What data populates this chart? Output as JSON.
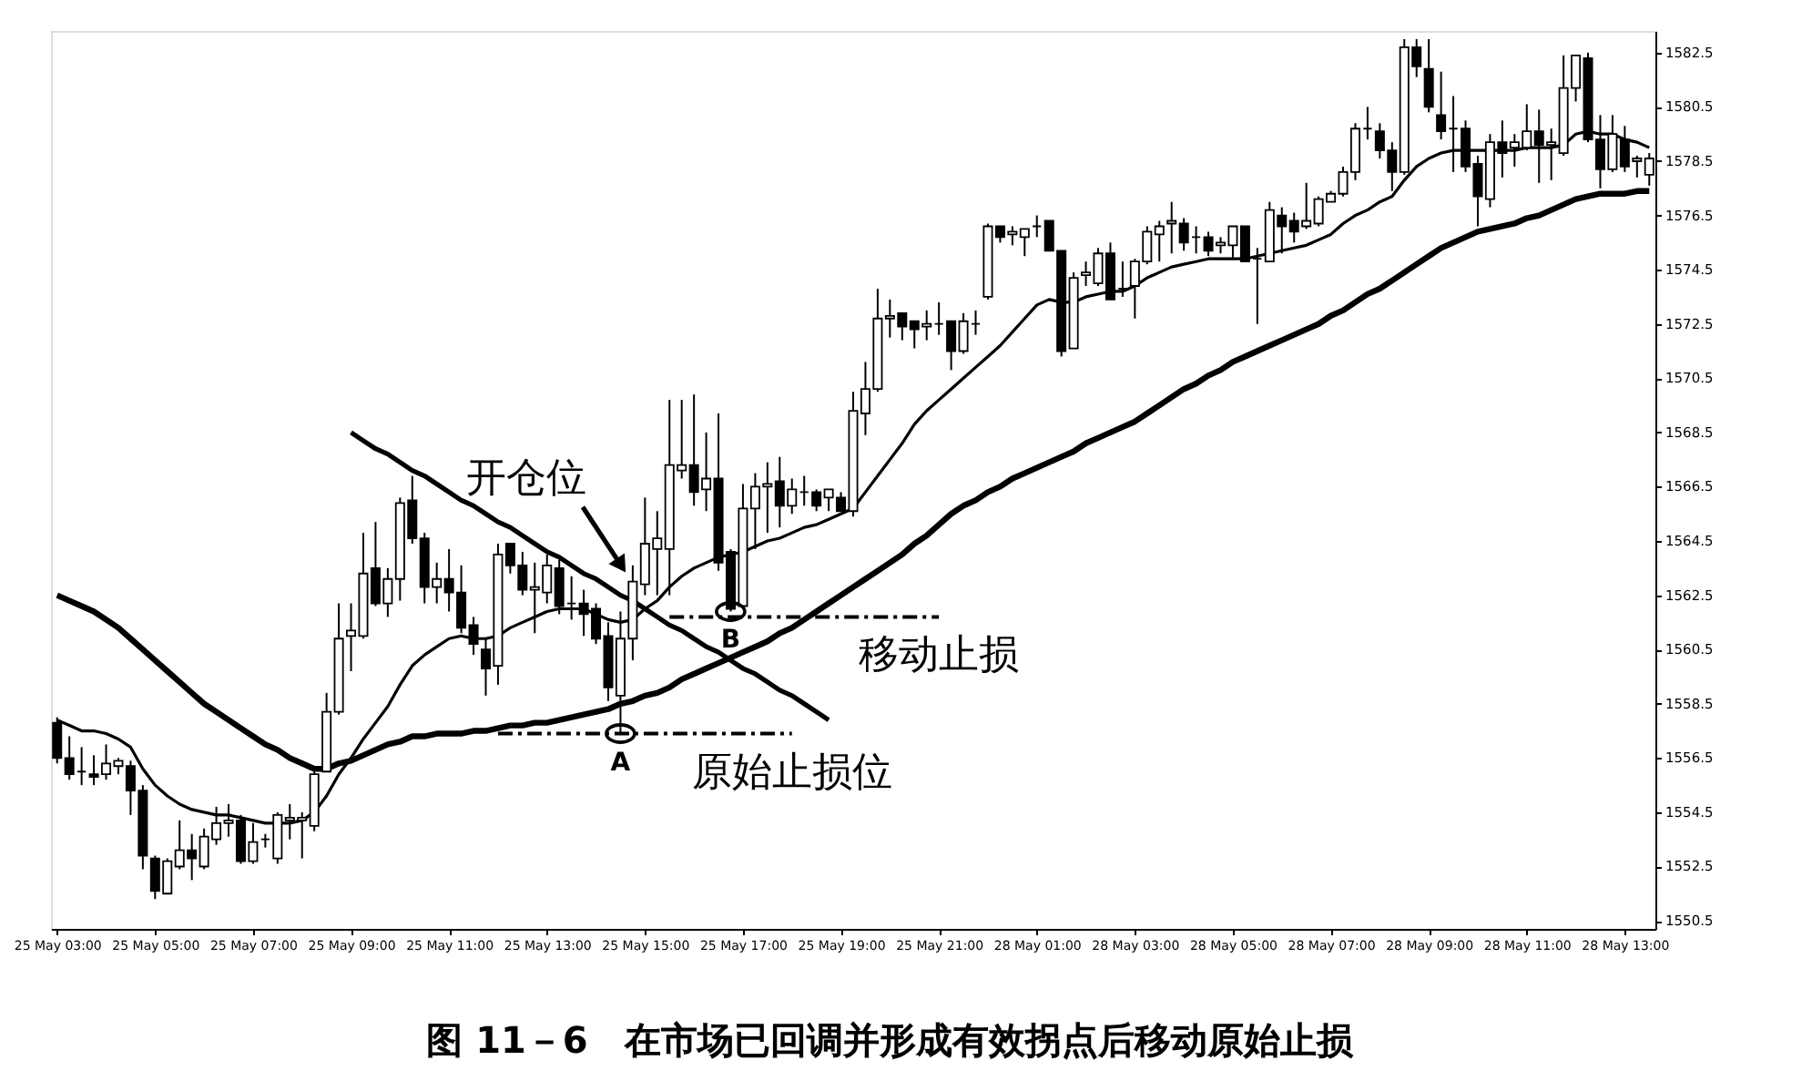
{
  "chart_data": {
    "type": "candlestick",
    "title": "图 11－6　在市场已回调并形成有效拐点后移动原始止损",
    "categories": [
      "25 May 03:00",
      null,
      null,
      null,
      null,
      null,
      null,
      null,
      "25 May 05:00",
      null,
      null,
      null,
      null,
      null,
      null,
      null,
      "25 May 07:00",
      null,
      null,
      null,
      null,
      null,
      null,
      null,
      "25 May 09:00",
      null,
      null,
      null,
      null,
      null,
      null,
      null,
      "25 May 11:00",
      null,
      null,
      null,
      null,
      null,
      null,
      null,
      "25 May 13:00",
      null,
      null,
      null,
      null,
      null,
      null,
      null,
      "25 May 15:00",
      null,
      null,
      null,
      null,
      null,
      null,
      null,
      "25 May 17:00",
      null,
      null,
      null,
      null,
      null,
      null,
      null,
      "25 May 19:00",
      null,
      null,
      null,
      null,
      null,
      null,
      null,
      "25 May 21:00",
      null,
      null,
      null,
      null,
      null,
      null,
      null,
      "28 May 01:00",
      null,
      null,
      null,
      null,
      null,
      null,
      null,
      "28 May 03:00",
      null,
      null,
      null,
      null,
      null,
      null,
      null,
      "28 May 05:00",
      null,
      null,
      null,
      null,
      null,
      null,
      null,
      "28 May 07:00",
      null,
      null,
      null,
      null,
      null,
      null,
      null,
      "28 May 09:00",
      null,
      null,
      null,
      null,
      null,
      null,
      null,
      "28 May 11:00",
      null,
      null,
      null,
      null,
      null,
      null,
      null,
      "28 May 13:00",
      null,
      null
    ],
    "ylim": [
      1550.2,
      1583.3
    ],
    "yticks": [
      1550.5,
      1552.5,
      1554.5,
      1556.5,
      1558.5,
      1560.5,
      1562.5,
      1564.5,
      1566.5,
      1568.5,
      1570.5,
      1572.5,
      1574.5,
      1576.5,
      1578.5,
      1580.5,
      1582.5
    ],
    "grid": false,
    "ohlc": [
      [
        1557.8,
        1558.0,
        1556.3,
        1556.5
      ],
      [
        1556.5,
        1557.3,
        1555.7,
        1555.9
      ],
      [
        1556.0,
        1556.9,
        1555.5,
        1556.0
      ],
      [
        1555.9,
        1556.6,
        1555.5,
        1555.8
      ],
      [
        1555.9,
        1557.0,
        1555.7,
        1556.3
      ],
      [
        1556.2,
        1556.5,
        1555.9,
        1556.4
      ],
      [
        1556.2,
        1556.4,
        1554.4,
        1555.3
      ],
      [
        1555.3,
        1555.5,
        1552.4,
        1552.9
      ],
      [
        1552.8,
        1552.9,
        1551.3,
        1551.6
      ],
      [
        1551.5,
        1552.8,
        1551.5,
        1552.7
      ],
      [
        1552.5,
        1554.2,
        1552.4,
        1553.1
      ],
      [
        1553.1,
        1553.7,
        1552.0,
        1552.8
      ],
      [
        1552.5,
        1553.9,
        1552.4,
        1553.6
      ],
      [
        1553.5,
        1554.7,
        1553.3,
        1554.1
      ],
      [
        1554.1,
        1554.8,
        1553.6,
        1554.2
      ],
      [
        1554.2,
        1554.4,
        1552.6,
        1552.7
      ],
      [
        1552.7,
        1554.1,
        1552.6,
        1553.4
      ],
      [
        1553.5,
        1553.7,
        1553.2,
        1553.5
      ],
      [
        1552.8,
        1554.5,
        1552.6,
        1554.4
      ],
      [
        1554.2,
        1554.8,
        1553.5,
        1554.3
      ],
      [
        1554.2,
        1554.5,
        1552.8,
        1554.3
      ],
      [
        1554.0,
        1556.1,
        1553.8,
        1555.9
      ],
      [
        1556.0,
        1558.9,
        1556.0,
        1558.2
      ],
      [
        1558.2,
        1562.2,
        1558.1,
        1560.9
      ],
      [
        1561.0,
        1562.2,
        1559.7,
        1561.2
      ],
      [
        1561.0,
        1564.8,
        1560.9,
        1563.3
      ],
      [
        1563.5,
        1565.2,
        1562.1,
        1562.2
      ],
      [
        1562.2,
        1563.5,
        1561.7,
        1563.1
      ],
      [
        1563.1,
        1566.1,
        1562.3,
        1565.9
      ],
      [
        1566.0,
        1566.9,
        1564.4,
        1564.6
      ],
      [
        1564.6,
        1564.8,
        1562.2,
        1562.8
      ],
      [
        1562.8,
        1563.7,
        1562.2,
        1563.1
      ],
      [
        1563.1,
        1564.2,
        1561.9,
        1562.6
      ],
      [
        1562.6,
        1563.6,
        1561.1,
        1561.3
      ],
      [
        1561.4,
        1561.7,
        1560.3,
        1560.7
      ],
      [
        1560.5,
        1560.9,
        1558.8,
        1559.8
      ],
      [
        1559.9,
        1564.4,
        1559.2,
        1564.0
      ],
      [
        1564.4,
        1564.4,
        1563.3,
        1563.6
      ],
      [
        1563.6,
        1564.1,
        1562.5,
        1562.7
      ],
      [
        1562.7,
        1563.7,
        1561.1,
        1562.8
      ],
      [
        1562.6,
        1564.0,
        1562.2,
        1563.6
      ],
      [
        1563.5,
        1563.8,
        1561.8,
        1562.1
      ],
      [
        1562.2,
        1563.2,
        1561.6,
        1562.2
      ],
      [
        1562.2,
        1562.7,
        1561.0,
        1561.8
      ],
      [
        1562.0,
        1562.2,
        1560.7,
        1560.9
      ],
      [
        1561.0,
        1561.5,
        1558.6,
        1559.1
      ],
      [
        1558.8,
        1561.9,
        1557.4,
        1560.9
      ],
      [
        1560.9,
        1563.6,
        1560.1,
        1563.0
      ],
      [
        1562.9,
        1566.1,
        1562.5,
        1564.4
      ],
      [
        1564.2,
        1565.6,
        1562.5,
        1564.6
      ],
      [
        1564.2,
        1569.7,
        1562.5,
        1567.3
      ],
      [
        1567.1,
        1569.7,
        1566.8,
        1567.3
      ],
      [
        1567.3,
        1569.9,
        1565.8,
        1566.3
      ],
      [
        1566.4,
        1568.5,
        1565.6,
        1566.8
      ],
      [
        1566.8,
        1569.2,
        1563.4,
        1563.7
      ],
      [
        1564.1,
        1564.2,
        1561.9,
        1562.0
      ],
      [
        1562.1,
        1566.6,
        1562.0,
        1565.7
      ],
      [
        1565.7,
        1567.0,
        1564.2,
        1566.5
      ],
      [
        1566.5,
        1567.4,
        1564.8,
        1566.6
      ],
      [
        1566.7,
        1567.6,
        1565.0,
        1565.8
      ],
      [
        1565.8,
        1566.8,
        1565.5,
        1566.4
      ],
      [
        1566.3,
        1566.9,
        1565.8,
        1566.3
      ],
      [
        1566.3,
        1566.4,
        1565.6,
        1565.8
      ],
      [
        1566.1,
        1566.4,
        1565.6,
        1566.4
      ],
      [
        1566.1,
        1566.3,
        1565.6,
        1565.6
      ],
      [
        1565.6,
        1570.0,
        1565.4,
        1569.3
      ],
      [
        1569.2,
        1571.1,
        1568.4,
        1570.1
      ],
      [
        1570.1,
        1573.8,
        1570.0,
        1572.7
      ],
      [
        1572.7,
        1573.4,
        1572.0,
        1572.8
      ],
      [
        1572.9,
        1572.9,
        1571.9,
        1572.4
      ],
      [
        1572.6,
        1572.6,
        1571.6,
        1572.3
      ],
      [
        1572.4,
        1573.0,
        1571.9,
        1572.5
      ],
      [
        1572.5,
        1573.3,
        1572.1,
        1572.5
      ],
      [
        1572.6,
        1572.6,
        1570.8,
        1571.5
      ],
      [
        1571.5,
        1572.9,
        1571.4,
        1572.6
      ],
      [
        1572.5,
        1573.0,
        1572.1,
        1572.5
      ],
      [
        1573.5,
        1576.2,
        1573.4,
        1576.1
      ],
      [
        1576.1,
        1576.1,
        1575.5,
        1575.7
      ],
      [
        1575.8,
        1576.1,
        1575.4,
        1575.9
      ],
      [
        1575.7,
        1576.0,
        1575.0,
        1576.0
      ],
      [
        1576.1,
        1576.5,
        1575.7,
        1576.1
      ],
      [
        1576.3,
        1576.3,
        1575.2,
        1575.2
      ],
      [
        1575.2,
        1575.2,
        1571.3,
        1571.5
      ],
      [
        1571.6,
        1574.4,
        1571.6,
        1574.2
      ],
      [
        1574.3,
        1574.8,
        1573.9,
        1574.4
      ],
      [
        1574.0,
        1575.3,
        1573.9,
        1575.1
      ],
      [
        1575.1,
        1575.5,
        1573.4,
        1573.4
      ],
      [
        1573.8,
        1574.8,
        1573.5,
        1573.8
      ],
      [
        1573.9,
        1574.9,
        1572.7,
        1574.8
      ],
      [
        1574.8,
        1576.1,
        1574.7,
        1575.9
      ],
      [
        1575.8,
        1576.3,
        1574.8,
        1576.1
      ],
      [
        1576.2,
        1577.0,
        1575.1,
        1576.3
      ],
      [
        1576.2,
        1576.4,
        1575.2,
        1575.5
      ],
      [
        1575.7,
        1576.1,
        1575.1,
        1575.7
      ],
      [
        1575.7,
        1575.9,
        1575.0,
        1575.2
      ],
      [
        1575.4,
        1575.7,
        1575.1,
        1575.5
      ],
      [
        1575.4,
        1576.1,
        1574.9,
        1576.1
      ],
      [
        1576.1,
        1576.1,
        1574.8,
        1574.8
      ],
      [
        1574.9,
        1575.3,
        1572.5,
        1574.9
      ],
      [
        1574.8,
        1577.0,
        1574.8,
        1576.7
      ],
      [
        1576.5,
        1576.8,
        1575.1,
        1576.1
      ],
      [
        1576.3,
        1576.6,
        1575.5,
        1575.9
      ],
      [
        1576.1,
        1577.7,
        1576.0,
        1576.3
      ],
      [
        1576.2,
        1577.2,
        1576.1,
        1577.1
      ],
      [
        1577.0,
        1577.4,
        1577.0,
        1577.3
      ],
      [
        1577.3,
        1578.3,
        1577.2,
        1578.1
      ],
      [
        1578.1,
        1579.9,
        1577.8,
        1579.7
      ],
      [
        1579.7,
        1580.5,
        1579.3,
        1579.7
      ],
      [
        1579.6,
        1579.9,
        1578.6,
        1578.9
      ],
      [
        1578.9,
        1579.2,
        1577.4,
        1578.1
      ],
      [
        1578.1,
        1583.0,
        1578.0,
        1582.7
      ],
      [
        1582.7,
        1583.0,
        1581.6,
        1582.0
      ],
      [
        1581.9,
        1583.0,
        1580.3,
        1580.5
      ],
      [
        1580.2,
        1581.8,
        1579.3,
        1579.6
      ],
      [
        1579.7,
        1580.9,
        1578.1,
        1579.7
      ],
      [
        1579.7,
        1580.0,
        1578.1,
        1578.3
      ],
      [
        1578.4,
        1578.7,
        1576.1,
        1577.2
      ],
      [
        1577.1,
        1579.5,
        1576.8,
        1579.2
      ],
      [
        1579.2,
        1580.0,
        1577.9,
        1578.8
      ],
      [
        1579.0,
        1579.5,
        1578.3,
        1579.2
      ],
      [
        1579.0,
        1580.6,
        1578.9,
        1579.6
      ],
      [
        1579.6,
        1580.4,
        1577.7,
        1579.1
      ],
      [
        1579.1,
        1579.7,
        1577.8,
        1579.2
      ],
      [
        1578.8,
        1582.4,
        1578.7,
        1581.2
      ],
      [
        1581.2,
        1582.4,
        1580.7,
        1582.4
      ],
      [
        1582.3,
        1582.5,
        1579.2,
        1579.3
      ],
      [
        1579.3,
        1580.2,
        1577.5,
        1578.2
      ],
      [
        1578.2,
        1580.2,
        1578.1,
        1579.5
      ],
      [
        1579.3,
        1579.8,
        1578.1,
        1578.3
      ],
      [
        1578.5,
        1578.7,
        1577.9,
        1578.6
      ],
      [
        1578.0,
        1578.8,
        1577.6,
        1578.6
      ]
    ],
    "series": [
      {
        "type": "line",
        "color": "#000000",
        "values": [
          1557.9,
          1557.7,
          1557.5,
          1557.5,
          1557.4,
          1557.2,
          1556.9,
          1556.1,
          1555.5,
          1555.1,
          1554.8,
          1554.6,
          1554.5,
          1554.4,
          1554.4,
          1554.3,
          1554.2,
          1554.1,
          1554.1,
          1554.1,
          1554.2,
          1554.5,
          1555.1,
          1555.9,
          1556.5,
          1557.2,
          1557.8,
          1558.4,
          1559.2,
          1559.9,
          1560.3,
          1560.6,
          1560.9,
          1561.0,
          1560.9,
          1560.9,
          1561.0,
          1561.3,
          1561.5,
          1561.7,
          1561.9,
          1562.0,
          1562.0,
          1562.0,
          1561.8,
          1561.6,
          1561.5,
          1561.6,
          1562.0,
          1562.3,
          1562.8,
          1563.2,
          1563.5,
          1563.7,
          1563.9,
          1564.0,
          1564.1,
          1564.3,
          1564.5,
          1564.6,
          1564.8,
          1565.0,
          1565.1,
          1565.3,
          1565.5,
          1565.7,
          1566.3,
          1566.9,
          1567.5,
          1568.1,
          1568.8,
          1569.3,
          1569.7,
          1570.1,
          1570.5,
          1570.9,
          1571.3,
          1571.7,
          1572.2,
          1572.7,
          1573.2,
          1573.4,
          1573.3,
          1573.3,
          1573.5,
          1573.6,
          1573.7,
          1573.7,
          1573.9,
          1574.2,
          1574.4,
          1574.6,
          1574.7,
          1574.8,
          1574.9,
          1574.9,
          1574.9,
          1574.9,
          1575.0,
          1575.1,
          1575.2,
          1575.3,
          1575.4,
          1575.6,
          1575.8,
          1576.2,
          1576.5,
          1576.7,
          1577.0,
          1577.2,
          1577.8,
          1578.3,
          1578.6,
          1578.8,
          1578.9,
          1578.9,
          1578.9,
          1578.9,
          1578.9,
          1578.9,
          1579.0,
          1579.0,
          1579.0,
          1579.1,
          1579.5,
          1579.6,
          1579.5,
          1579.5,
          1579.3,
          1579.2,
          1579.0
        ]
      },
      {
        "type": "line",
        "color": "#000000",
        "values": [
          1562.5,
          1562.3,
          1562.1,
          1561.9,
          1561.6,
          1561.3,
          1560.9,
          1560.5,
          1560.1,
          1559.7,
          1559.3,
          1558.9,
          1558.5,
          1558.2,
          1557.9,
          1557.6,
          1557.3,
          1557.0,
          1556.8,
          1556.5,
          1556.3,
          1556.1,
          1556.1,
          1556.3,
          1556.4,
          1556.6,
          1556.8,
          1557.0,
          1557.1,
          1557.3,
          1557.3,
          1557.4,
          1557.4,
          1557.4,
          1557.5,
          1557.5,
          1557.6,
          1557.7,
          1557.7,
          1557.8,
          1557.8,
          1557.9,
          1558.0,
          1558.1,
          1558.2,
          1558.3,
          1558.5,
          1558.6,
          1558.8,
          1558.9,
          1559.1,
          1559.4,
          1559.6,
          1559.8,
          1560.0,
          1560.2,
          1560.4,
          1560.6,
          1560.8,
          1561.1,
          1561.3,
          1561.6,
          1561.9,
          1562.2,
          1562.5,
          1562.8,
          1563.1,
          1563.4,
          1563.7,
          1564.0,
          1564.4,
          1564.7,
          1565.1,
          1565.5,
          1565.8,
          1566.0,
          1566.3,
          1566.5,
          1566.8,
          1567.0,
          1567.2,
          1567.4,
          1567.6,
          1567.8,
          1568.1,
          1568.3,
          1568.5,
          1568.7,
          1568.9,
          1569.2,
          1569.5,
          1569.8,
          1570.1,
          1570.3,
          1570.6,
          1570.8,
          1571.1,
          1571.3,
          1571.5,
          1571.7,
          1571.9,
          1572.1,
          1572.3,
          1572.5,
          1572.8,
          1573.0,
          1573.3,
          1573.6,
          1573.8,
          1574.1,
          1574.4,
          1574.7,
          1575.0,
          1575.3,
          1575.5,
          1575.7,
          1575.9,
          1576.0,
          1576.1,
          1576.2,
          1576.4,
          1576.5,
          1576.7,
          1576.9,
          1577.1,
          1577.2,
          1577.3,
          1577.3,
          1577.3,
          1577.4,
          1577.4
        ]
      },
      {
        "type": "line",
        "color": "#000000",
        "values": [
          null,
          null,
          null,
          null,
          null,
          null,
          null,
          null,
          null,
          null,
          null,
          null,
          null,
          null,
          null,
          null,
          null,
          null,
          null,
          null,
          null,
          null,
          null,
          null,
          1568.5,
          1568.2,
          1567.9,
          1567.7,
          1567.4,
          1567.1,
          1566.9,
          1566.6,
          1566.3,
          1566.0,
          1565.8,
          1565.5,
          1565.2,
          1565.0,
          1564.7,
          1564.4,
          1564.1,
          1563.9,
          1563.6,
          1563.3,
          1563.1,
          1562.8,
          1562.5,
          1562.3,
          1562.0,
          1561.7,
          1561.4,
          1561.2,
          1560.9,
          1560.6,
          1560.4,
          1560.1,
          1559.8,
          1559.6,
          1559.3,
          1559.0,
          1558.8,
          1558.5,
          1558.2,
          1557.9,
          null,
          null,
          null,
          null,
          null,
          null,
          null,
          null,
          null,
          null,
          null,
          null,
          null,
          null,
          null,
          null,
          null,
          null,
          null,
          null,
          null,
          null,
          null,
          null,
          null,
          null,
          null,
          null,
          null,
          null,
          null,
          null,
          null,
          null,
          null,
          null,
          null,
          null,
          null,
          null,
          null,
          null,
          null,
          null,
          null,
          null,
          null,
          null,
          null,
          null,
          null,
          null,
          null,
          null,
          null,
          null,
          null,
          null,
          null,
          null,
          null,
          null,
          null,
          null,
          null,
          null,
          null
        ]
      },
      {
        "type": "line",
        "color": "#000000",
        "name": "原始止损位",
        "line_style": "dashed",
        "values": [
          null,
          null,
          null,
          null,
          null,
          null,
          null,
          null,
          null,
          null,
          null,
          null,
          null,
          null,
          null,
          null,
          null,
          null,
          null,
          null,
          null,
          null,
          null,
          null,
          null,
          null,
          null,
          null,
          null,
          null,
          null,
          null,
          null,
          null,
          null,
          null,
          1557.4,
          1557.4,
          1557.4,
          1557.4,
          1557.4,
          1557.4,
          1557.4,
          1557.4,
          1557.4,
          1557.4,
          1557.4,
          1557.4,
          1557.4,
          1557.4,
          1557.4,
          1557.4,
          1557.4,
          1557.4,
          1557.4,
          1557.4,
          1557.4,
          1557.4,
          1557.4,
          1557.4,
          1557.4,
          null,
          null,
          null,
          null,
          null,
          null,
          null,
          null,
          null,
          null,
          null,
          null,
          null,
          null,
          null,
          null,
          null,
          null,
          null,
          null,
          null,
          null,
          null,
          null,
          null,
          null,
          null,
          null,
          null,
          null,
          null,
          null,
          null,
          null,
          null,
          null,
          null,
          null,
          null,
          null,
          null,
          null,
          null,
          null,
          null,
          null,
          null,
          null,
          null,
          null,
          null,
          null,
          null,
          null,
          null,
          null,
          null,
          null,
          null,
          null,
          null,
          null,
          null,
          null,
          null,
          null,
          null,
          null,
          null,
          null
        ]
      },
      {
        "type": "line",
        "color": "#000000",
        "name": "移动止损",
        "line_style": "dashed",
        "values": [
          null,
          null,
          null,
          null,
          null,
          null,
          null,
          null,
          null,
          null,
          null,
          null,
          null,
          null,
          null,
          null,
          null,
          null,
          null,
          null,
          null,
          null,
          null,
          null,
          null,
          null,
          null,
          null,
          null,
          null,
          null,
          null,
          null,
          null,
          null,
          null,
          null,
          null,
          null,
          null,
          null,
          null,
          null,
          null,
          null,
          null,
          null,
          null,
          null,
          null,
          1561.7,
          1561.7,
          1561.7,
          1561.7,
          1561.7,
          1561.7,
          1561.7,
          1561.7,
          1561.7,
          1561.7,
          1561.7,
          1561.7,
          1561.7,
          1561.7,
          1561.7,
          1561.7,
          1561.7,
          1561.7,
          1561.7,
          1561.7,
          1561.7,
          1561.7,
          1561.7,
          null,
          null,
          null,
          null,
          null,
          null,
          null,
          null,
          null,
          null,
          null,
          null,
          null,
          null,
          null,
          null,
          null,
          null,
          null,
          null,
          null,
          null,
          null,
          null,
          null,
          null,
          null,
          null,
          null,
          null,
          null,
          null,
          null,
          null,
          null,
          null,
          null,
          null,
          null,
          null,
          null,
          null,
          null,
          null,
          null,
          null,
          null,
          null,
          null,
          null,
          null,
          null,
          null,
          null,
          null,
          null,
          null,
          null
        ]
      }
    ],
    "annotations": [
      {
        "text": "开仓位",
        "y": 1563.4
      },
      {
        "text": "A",
        "y": 1557.4
      },
      {
        "text": "B",
        "y": 1561.9
      }
    ]
  }
}
